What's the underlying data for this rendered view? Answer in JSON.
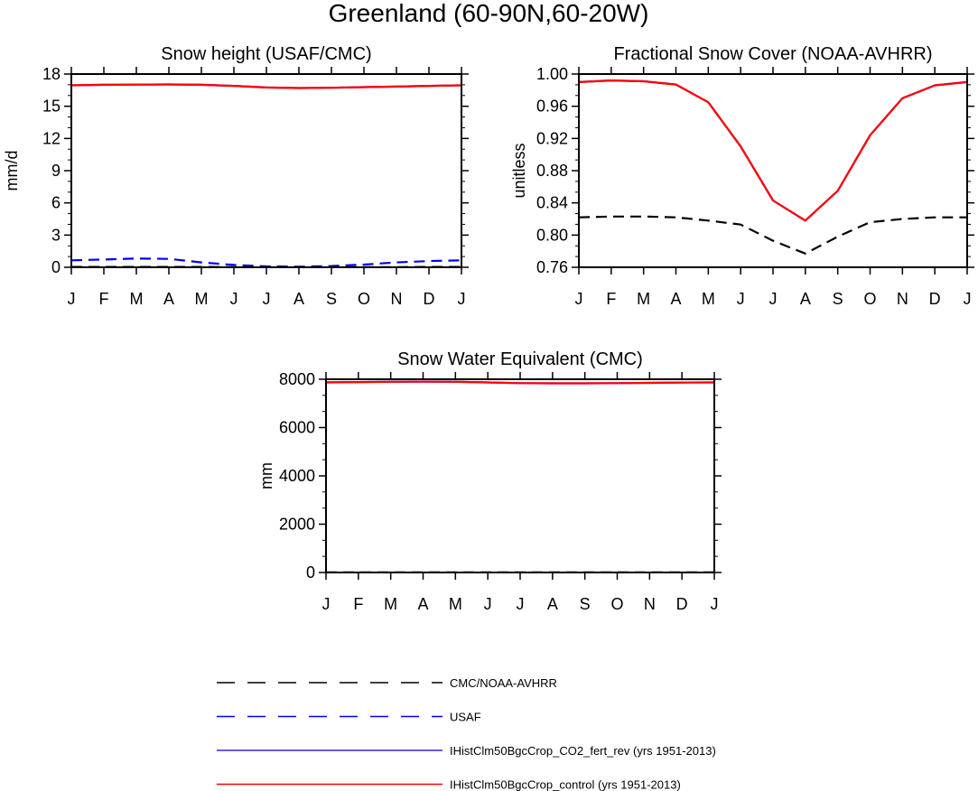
{
  "figure": {
    "title": "Greenland (60-90N,60-20W)"
  },
  "colors": {
    "obs1": "#000000",
    "obs2": "#0000ff",
    "model_co2": "#3a1ee6",
    "model_control": "#ff0000"
  },
  "legend": {
    "entries": [
      {
        "label": "CMC/NOAA-AVHRR",
        "color": "#000000",
        "style": "dashed"
      },
      {
        "label": "USAF",
        "color": "#0000ff",
        "style": "dashed"
      },
      {
        "label": "IHistClm50BgcCrop_CO2_fert_rev (yrs 1951-2013)",
        "color": "#3a1ee6",
        "style": "solid"
      },
      {
        "label": "IHistClm50BgcCrop_control (yrs 1951-2013)",
        "color": "#ff0000",
        "style": "solid"
      }
    ]
  },
  "chart_data": [
    {
      "type": "line",
      "title": "Snow height (USAF/CMC)",
      "ylabel": "mm/d",
      "x": [
        "J",
        "F",
        "M",
        "A",
        "M",
        "J",
        "J",
        "A",
        "S",
        "O",
        "N",
        "D",
        "J"
      ],
      "ylim": [
        0,
        18
      ],
      "yticks": [
        0,
        3,
        6,
        9,
        12,
        15,
        18
      ],
      "yticklabels": [
        "0",
        "3",
        "6",
        "9",
        "12",
        "15",
        "18"
      ],
      "series": [
        {
          "ref": "model_co2",
          "style": "solid",
          "values": [
            16.95,
            17.0,
            17.02,
            17.03,
            17.0,
            16.9,
            16.75,
            16.7,
            16.72,
            16.78,
            16.83,
            16.9,
            16.95
          ]
        },
        {
          "ref": "model_control",
          "style": "solid",
          "values": [
            16.95,
            17.0,
            17.02,
            17.03,
            17.0,
            16.9,
            16.75,
            16.7,
            16.72,
            16.78,
            16.83,
            16.9,
            16.95
          ]
        },
        {
          "ref": "obs2",
          "style": "dashed",
          "values": [
            0.65,
            0.72,
            0.82,
            0.78,
            0.45,
            0.22,
            0.08,
            0.05,
            0.12,
            0.25,
            0.45,
            0.58,
            0.65
          ]
        },
        {
          "ref": "obs1",
          "style": "dashed",
          "values": [
            0.03,
            0.03,
            0.03,
            0.03,
            0.03,
            0.02,
            0.01,
            0.01,
            0.01,
            0.02,
            0.02,
            0.03,
            0.03
          ]
        }
      ]
    },
    {
      "type": "line",
      "title": "Fractional Snow Cover (NOAA-AVHRR)",
      "ylabel": "unitless",
      "x": [
        "J",
        "F",
        "M",
        "A",
        "M",
        "J",
        "J",
        "A",
        "S",
        "O",
        "N",
        "D",
        "J"
      ],
      "ylim": [
        0.76,
        1.0
      ],
      "yticks": [
        0.76,
        0.8,
        0.84,
        0.88,
        0.92,
        0.96,
        1.0
      ],
      "yticklabels": [
        "0.76",
        "0.80",
        "0.84",
        "0.88",
        "0.92",
        "0.96",
        "1.00"
      ],
      "series": [
        {
          "ref": "model_co2",
          "style": "solid",
          "values": [
            0.99,
            0.992,
            0.991,
            0.987,
            0.965,
            0.91,
            0.843,
            0.818,
            0.855,
            0.924,
            0.97,
            0.986,
            0.99
          ]
        },
        {
          "ref": "model_control",
          "style": "solid",
          "values": [
            0.99,
            0.992,
            0.991,
            0.987,
            0.965,
            0.91,
            0.843,
            0.818,
            0.855,
            0.924,
            0.97,
            0.986,
            0.99
          ]
        },
        {
          "ref": "obs1",
          "style": "dashed",
          "values": [
            0.822,
            0.823,
            0.823,
            0.822,
            0.818,
            0.813,
            0.793,
            0.777,
            0.798,
            0.816,
            0.82,
            0.822,
            0.822
          ]
        }
      ]
    },
    {
      "type": "line",
      "title": "Snow Water Equivalent (CMC)",
      "ylabel": "mm",
      "x": [
        "J",
        "F",
        "M",
        "A",
        "M",
        "J",
        "J",
        "A",
        "S",
        "O",
        "N",
        "D",
        "J"
      ],
      "ylim": [
        0,
        8000
      ],
      "yticks": [
        0,
        2000,
        4000,
        6000,
        8000
      ],
      "yticklabels": [
        "0",
        "2000",
        "4000",
        "6000",
        "8000"
      ],
      "series": [
        {
          "ref": "model_co2",
          "style": "solid",
          "values": [
            7870,
            7885,
            7895,
            7900,
            7895,
            7870,
            7840,
            7830,
            7830,
            7840,
            7850,
            7865,
            7870
          ]
        },
        {
          "ref": "model_control",
          "style": "solid",
          "values": [
            7870,
            7885,
            7895,
            7900,
            7895,
            7870,
            7840,
            7830,
            7830,
            7840,
            7850,
            7865,
            7870
          ]
        },
        {
          "ref": "obs1",
          "style": "dashed",
          "values": [
            5,
            5,
            5,
            5,
            5,
            5,
            5,
            5,
            5,
            5,
            5,
            5,
            5
          ]
        }
      ]
    }
  ]
}
